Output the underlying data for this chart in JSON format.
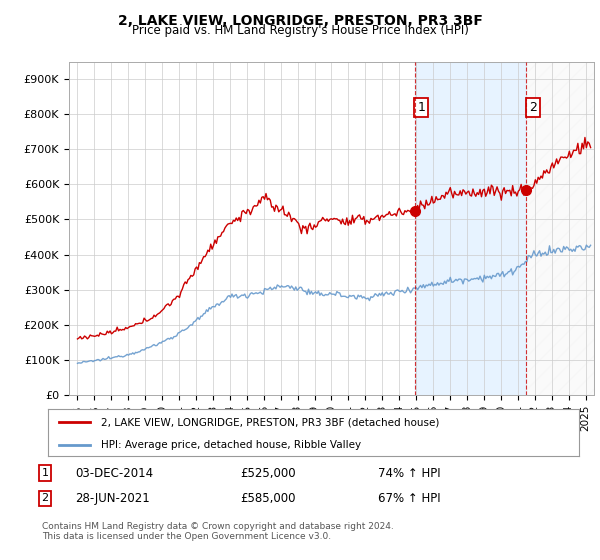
{
  "title": "2, LAKE VIEW, LONGRIDGE, PRESTON, PR3 3BF",
  "subtitle": "Price paid vs. HM Land Registry's House Price Index (HPI)",
  "ylabel_ticks": [
    "£0",
    "£100K",
    "£200K",
    "£300K",
    "£400K",
    "£500K",
    "£600K",
    "£700K",
    "£800K",
    "£900K"
  ],
  "ytick_values": [
    0,
    100000,
    200000,
    300000,
    400000,
    500000,
    600000,
    700000,
    800000,
    900000
  ],
  "ylim": [
    0,
    950000
  ],
  "xlim_start": 1994.5,
  "xlim_end": 2025.5,
  "hpi_color": "#6699cc",
  "price_color": "#cc0000",
  "sale1_date": "03-DEC-2014",
  "sale1_price": 525000,
  "sale1_label": "74% ↑ HPI",
  "sale2_date": "28-JUN-2021",
  "sale2_price": 585000,
  "sale2_label": "67% ↑ HPI",
  "sale1_x": 2014.92,
  "sale2_x": 2021.5,
  "legend_line1": "2, LAKE VIEW, LONGRIDGE, PRESTON, PR3 3BF (detached house)",
  "legend_line2": "HPI: Average price, detached house, Ribble Valley",
  "footer": "Contains HM Land Registry data © Crown copyright and database right 2024.\nThis data is licensed under the Open Government Licence v3.0.",
  "background_color": "#ffffff",
  "grid_color": "#cccccc",
  "shade_color": "#ddeeff"
}
